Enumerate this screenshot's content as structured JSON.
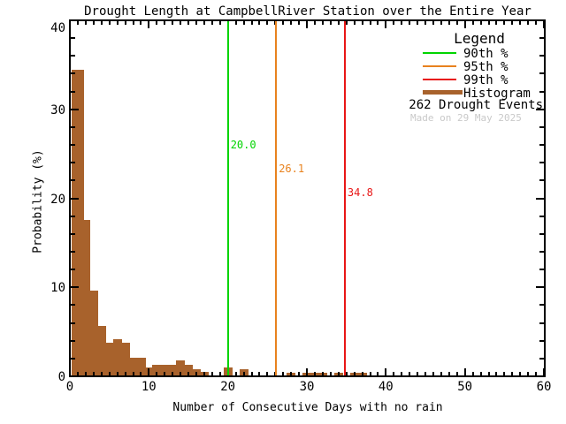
{
  "title": "Drought Length at CampbellRiver Station over the Entire Year",
  "axes": {
    "xlabel": "Number of Consecutive Days with no rain",
    "ylabel": "Probability (%)"
  },
  "legend": {
    "header": "Legend",
    "items": [
      {
        "label": "90th %",
        "color": "#00d400",
        "line": "thin"
      },
      {
        "label": "95th %",
        "color": "#e8821e",
        "line": "thin"
      },
      {
        "label": "99th %",
        "color": "#e81717",
        "line": "thin"
      },
      {
        "label": "Histogram",
        "color": "#a8622c",
        "line": "thick"
      }
    ],
    "events_text": "262 Drought Events",
    "made_on": "Made on 29 May 2025"
  },
  "chart_data": {
    "type": "bar",
    "title": "Drought Length at CampbellRiver Station over the Entire Year",
    "xlabel": "Number of Consecutive Days with no rain",
    "ylabel": "Probability (%)",
    "xlim": [
      0,
      60
    ],
    "ylim": [
      0,
      40
    ],
    "x_major_ticks": [
      0,
      10,
      20,
      30,
      40,
      50,
      60
    ],
    "x_minor_step": 1,
    "y_major_ticks": [
      0,
      10,
      20,
      30,
      40
    ],
    "y_minor_step": 2,
    "grid": false,
    "legend_position": "top-right",
    "n_events": 262,
    "bar_color": "#a8622c",
    "bins": [
      {
        "day": 1,
        "pct": 34.4
      },
      {
        "day": 2,
        "pct": 17.6
      },
      {
        "day": 3,
        "pct": 9.6
      },
      {
        "day": 4,
        "pct": 5.7
      },
      {
        "day": 5,
        "pct": 3.8
      },
      {
        "day": 6,
        "pct": 4.2
      },
      {
        "day": 7,
        "pct": 3.8
      },
      {
        "day": 8,
        "pct": 2.1
      },
      {
        "day": 9,
        "pct": 2.1
      },
      {
        "day": 10,
        "pct": 1.0
      },
      {
        "day": 11,
        "pct": 1.3
      },
      {
        "day": 12,
        "pct": 1.3
      },
      {
        "day": 13,
        "pct": 1.3
      },
      {
        "day": 14,
        "pct": 1.8
      },
      {
        "day": 15,
        "pct": 1.3
      },
      {
        "day": 16,
        "pct": 0.8
      },
      {
        "day": 17,
        "pct": 0.5
      },
      {
        "day": 20,
        "pct": 1.0
      },
      {
        "day": 22,
        "pct": 0.8
      },
      {
        "day": 28,
        "pct": 0.4
      },
      {
        "day": 30,
        "pct": 0.4
      },
      {
        "day": 31,
        "pct": 0.4
      },
      {
        "day": 32,
        "pct": 0.4
      },
      {
        "day": 34,
        "pct": 0.4
      },
      {
        "day": 36,
        "pct": 0.4
      },
      {
        "day": 37,
        "pct": 0.4
      }
    ],
    "percentile_lines": [
      {
        "percentile": "90th",
        "value_days": 20.0,
        "label": "20.0",
        "color": "#00d400",
        "label_y": 26.7
      },
      {
        "percentile": "95th",
        "value_days": 26.1,
        "label": "26.1",
        "color": "#e8821e",
        "label_y": 24.0
      },
      {
        "percentile": "99th",
        "value_days": 34.8,
        "label": "34.8",
        "color": "#e81717",
        "label_y": 21.3
      }
    ]
  }
}
